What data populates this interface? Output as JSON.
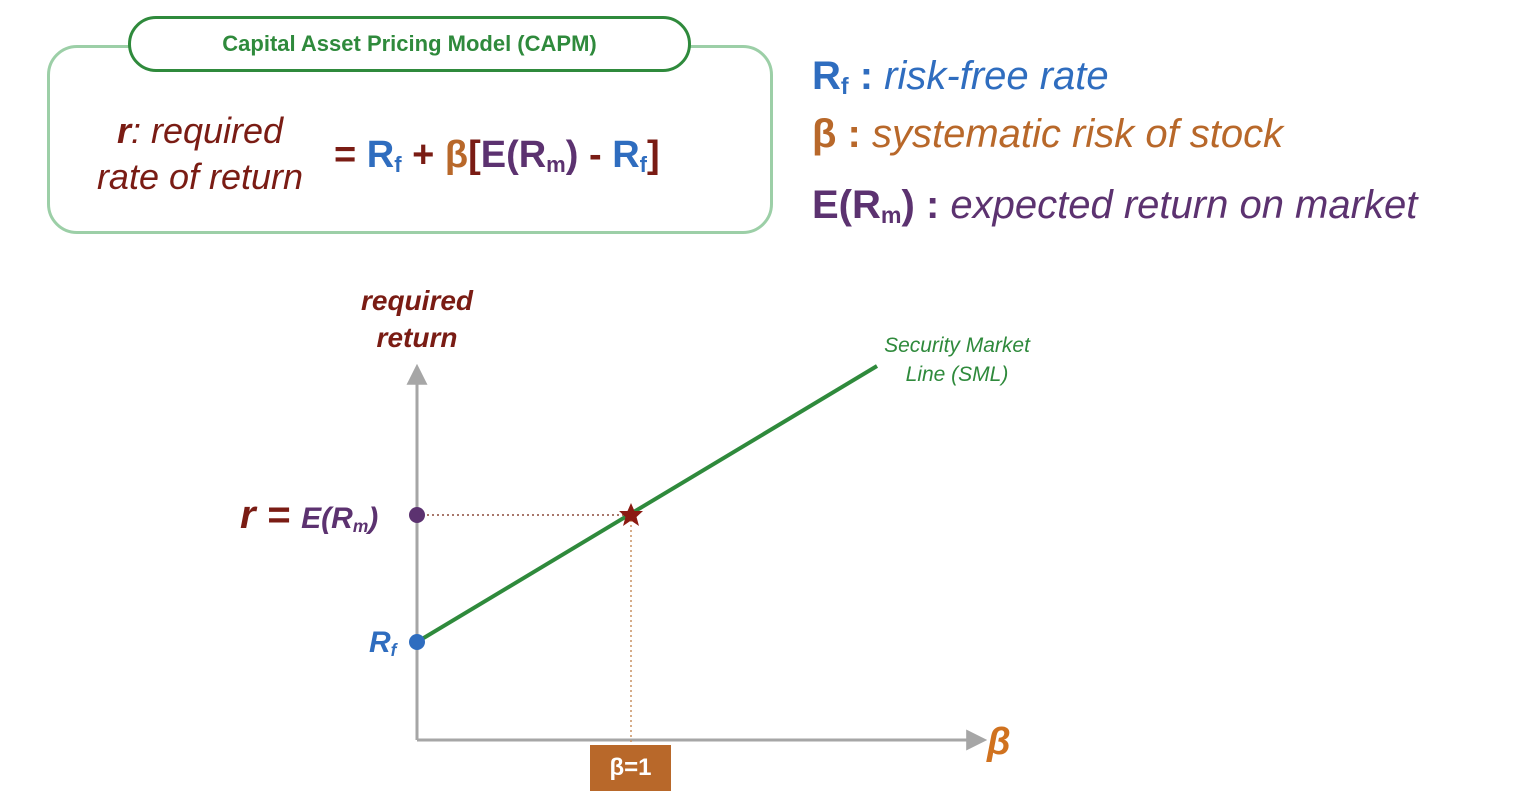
{
  "capm_box": {
    "title": "Capital Asset Pricing Model (CAPM)",
    "r_symbol": "r",
    "r_def_line1": ": required",
    "r_def_line2": "rate of return",
    "formula": {
      "equals": "= ",
      "rf_main": "R",
      "rf_sub": "f",
      "plus": " + ",
      "beta": "β",
      "bracket_open": "[",
      "e_open": "E(R",
      "m_sub": "m",
      "e_close": ")",
      "minus": " - ",
      "rf2_main": "R",
      "rf2_sub": "f",
      "bracket_close": "]"
    }
  },
  "legend": {
    "rf": {
      "symbol": "R",
      "sub": "f",
      "sep": " : ",
      "desc": "risk-free rate"
    },
    "beta": {
      "symbol": "β",
      "sep": " : ",
      "desc": "systematic risk of stock"
    },
    "erm": {
      "symbol_open": "E(R",
      "sub": "m",
      "symbol_close": ")",
      "sep": " : ",
      "desc": "expected return on market"
    }
  },
  "chart": {
    "y_axis_title_line1": "required",
    "y_axis_title_line2": "return",
    "x_axis_label": "β",
    "sml_label_line1": "Security Market",
    "sml_label_line2": "Line (SML)",
    "r_eq_r": "r = ",
    "r_eq_e": "E(R",
    "r_eq_sub": "m",
    "r_eq_close": ")",
    "rf_tick_main": "R",
    "rf_tick_sub": "f",
    "beta_marker": "β=1"
  },
  "colors": {
    "maroon": "#7a1c14",
    "blue": "#2f6dbf",
    "orange": "#b8682a",
    "purple": "#5c3270",
    "green": "#2f8a3c",
    "light_green": "#9ccfa7",
    "axis_gray": "#a6a6a6"
  },
  "chart_data": {
    "type": "line",
    "x": [
      0,
      1
    ],
    "series": [
      {
        "name": "Security Market Line (SML)",
        "points": [
          [
            0,
            0
          ],
          [
            1,
            1
          ]
        ]
      }
    ]
  }
}
